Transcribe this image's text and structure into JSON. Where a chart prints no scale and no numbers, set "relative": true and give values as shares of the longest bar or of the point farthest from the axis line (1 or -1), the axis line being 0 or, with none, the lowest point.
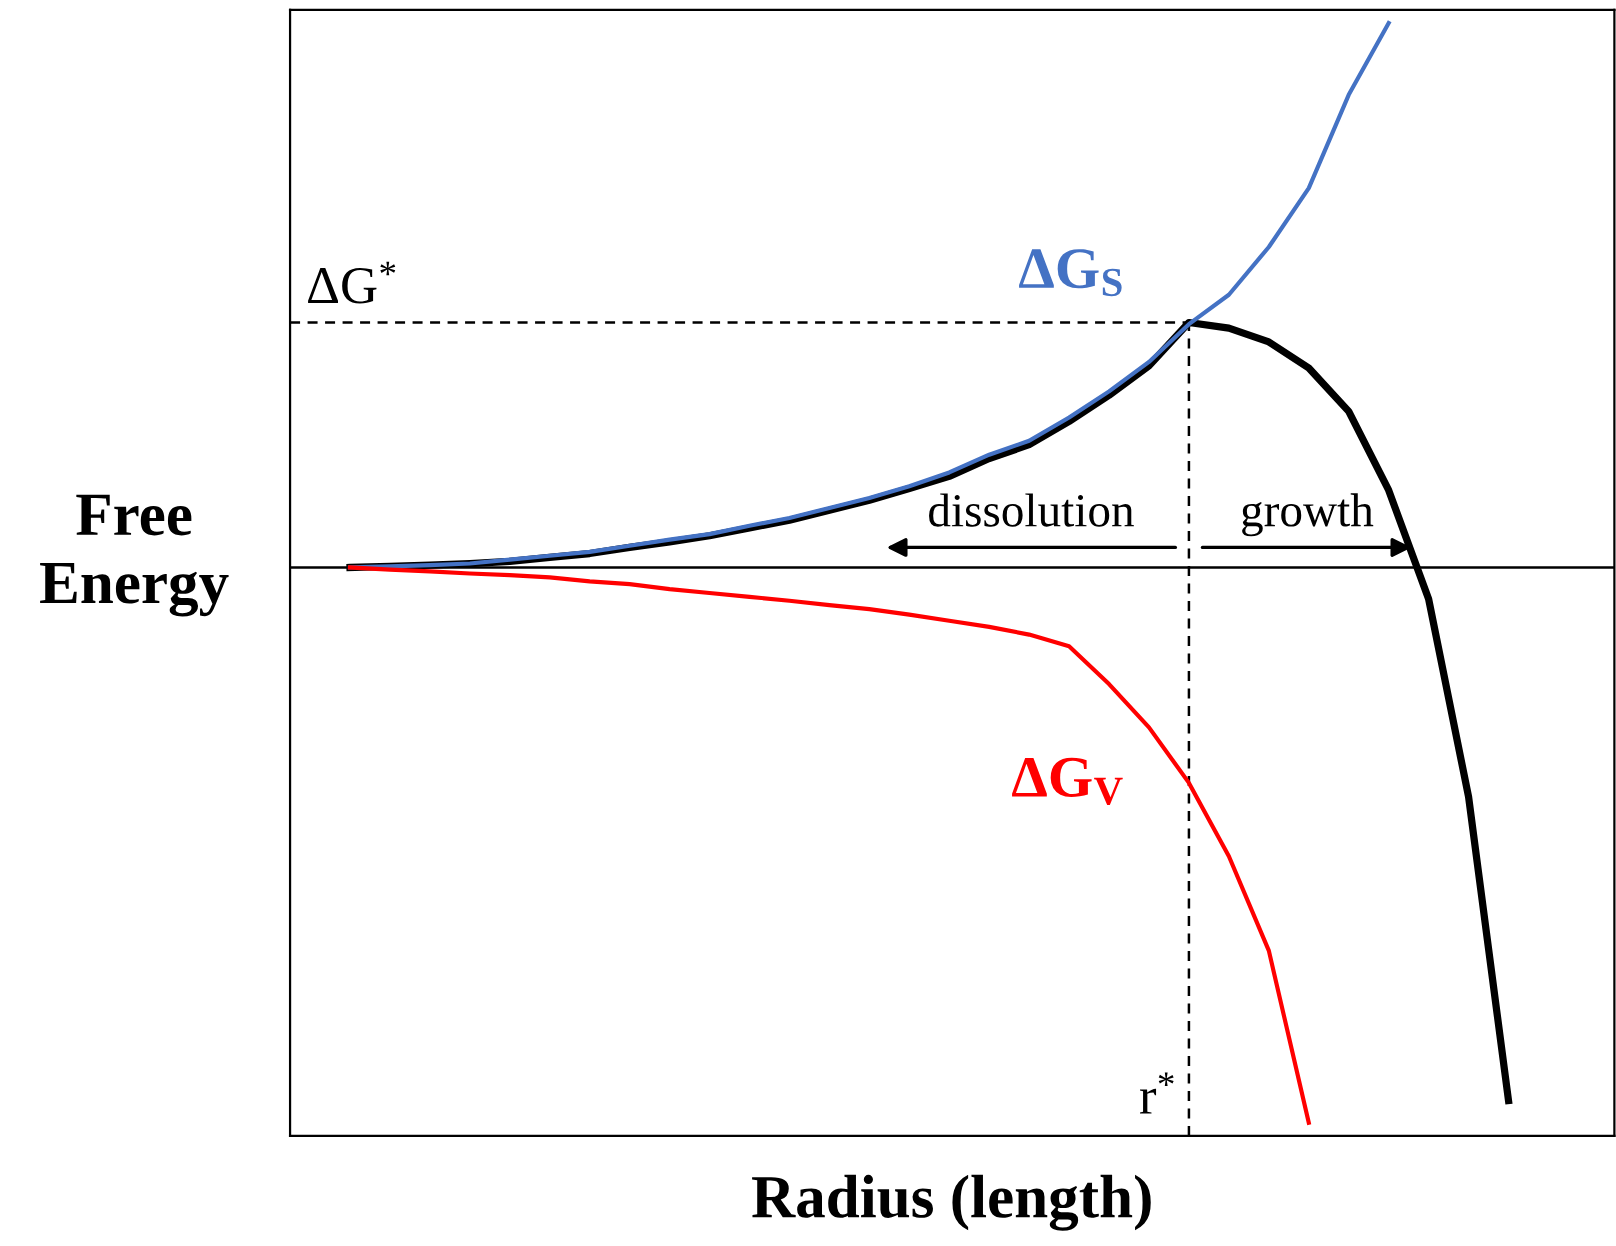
{
  "chart_data": {
    "type": "line",
    "relative": true,
    "xlabel": "Radius (length)",
    "ylabel": "Free Energy",
    "marker": "none",
    "line_style": "solid",
    "categories": [
      null,
      null,
      null,
      null,
      null,
      null,
      null,
      null,
      null,
      null,
      null,
      null,
      null,
      null,
      null,
      null,
      null,
      null,
      null,
      null,
      null,
      null,
      null,
      null,
      null,
      null,
      null,
      null,
      null,
      null
    ],
    "series": [
      {
        "name": "ΔG$_{S}$",
        "color": "#4472c4",
        "values": [
          0,
          0.002,
          0.004,
          0.007,
          0.014,
          0.021,
          0.028,
          0.039,
          0.05,
          0.06,
          0.075,
          0.089,
          0.107,
          0.125,
          0.146,
          0.171,
          0.203,
          0.228,
          0.27,
          0.317,
          0.37,
          0.438,
          0.491,
          0.577,
          0.683,
          0.851,
          0.98,
          null,
          null,
          null
        ]
      },
      {
        "color": "#000000",
        "values": [
          0,
          0.002,
          0.004,
          0.007,
          0.011,
          0.018,
          0.025,
          0.036,
          0.046,
          0.057,
          0.071,
          0.085,
          0.103,
          0.121,
          0.142,
          0.164,
          0.196,
          0.221,
          0.263,
          0.31,
          0.363,
          0.441,
          0.431,
          0.406,
          0.359,
          0.281,
          0.139,
          -0.057,
          -0.413,
          -0.96
        ]
      },
      {
        "name": "ΔG$_{V}$",
        "color": "#ff0000",
        "values": [
          0,
          -0.004,
          -0.007,
          -0.011,
          -0.014,
          -0.018,
          -0.025,
          -0.03,
          -0.039,
          -0.046,
          -0.053,
          -0.06,
          -0.068,
          -0.075,
          -0.085,
          -0.096,
          -0.107,
          -0.121,
          -0.142,
          -0.21,
          -0.288,
          -0.388,
          -0.52,
          -0.69,
          -1,
          null,
          null,
          null,
          null,
          null
        ]
      }
    ],
    "ref_lines": [
      {
        "axis": "y",
        "value": 0.441,
        "label": "ΔG$^{*}$",
        "line_style": "dashed"
      }
    ],
    "annotations": [
      "dissolution",
      "growth",
      "r$^{*}$"
    ]
  }
}
